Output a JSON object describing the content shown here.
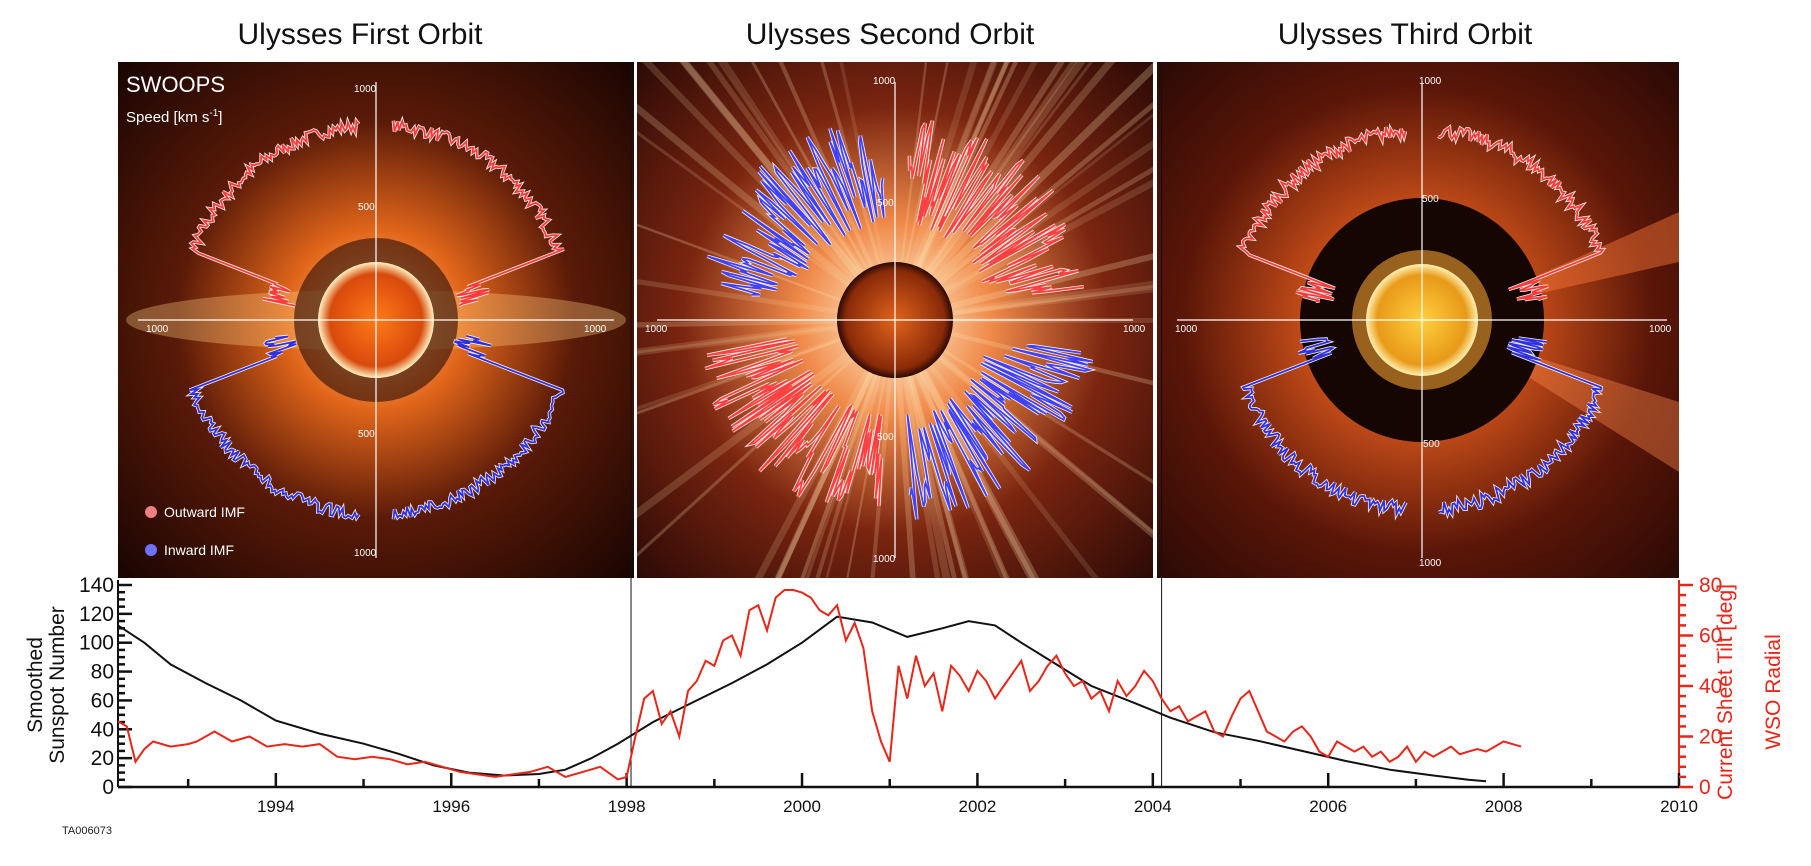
{
  "figure": {
    "code": "TA006073"
  },
  "panels": [
    {
      "title": "Ulysses First Orbit",
      "instrument": "SWOOPS",
      "quantity": "Speed [km s",
      "quantity_sup": "-1",
      "quantity_end": "]",
      "legend": [
        {
          "label": "Outward IMF",
          "color": "#f08080"
        },
        {
          "label": "Inward IMF",
          "color": "#7070ff"
        }
      ],
      "ticks": {
        "top_inner": "500",
        "top_outer": "1000",
        "bottom_inner": "500",
        "bottom_outer": "1000",
        "left": "1000",
        "right": "1000"
      },
      "solar_activity": "minimum"
    },
    {
      "title": "Ulysses Second Orbit",
      "ticks": {
        "top_inner": "500",
        "top_outer": "1000",
        "bottom_inner": "500",
        "bottom_outer": "1000",
        "left": "1000",
        "right": "1000"
      },
      "solar_activity": "maximum"
    },
    {
      "title": "Ulysses Third Orbit",
      "ticks": {
        "top_inner": "500",
        "top_outer": "1000",
        "bottom_inner": "500",
        "bottom_outer": "1000",
        "left": "1000",
        "right": "1000"
      },
      "solar_activity": "minimum"
    }
  ],
  "chart_data": {
    "type": "line",
    "ylabel_left": [
      "Smoothed",
      "Sunspot Number"
    ],
    "ylabel_right": [
      "Current Sheet Tilt [deg]",
      "WSO Radial"
    ],
    "xlim": [
      1992.2,
      2010
    ],
    "ylim_left": [
      0,
      140
    ],
    "ylim_right": [
      0,
      80
    ],
    "x_ticks": [
      1994,
      1996,
      1998,
      2000,
      2002,
      2004,
      2006,
      2008,
      2010
    ],
    "y_ticks_left": [
      0,
      20,
      40,
      60,
      80,
      100,
      120,
      140
    ],
    "y_ticks_right": [
      0,
      20,
      40,
      60,
      80
    ],
    "orbit_boundaries": [
      1998.05,
      2004.1
    ],
    "series": [
      {
        "axis": "left",
        "color": "#111111",
        "x": [
          1992.2,
          1992.5,
          1992.8,
          1993.2,
          1993.6,
          1994.0,
          1994.5,
          1995.0,
          1995.4,
          1995.8,
          1996.2,
          1996.6,
          1997.0,
          1997.3,
          1997.6,
          1997.9,
          1998.3,
          1998.8,
          1999.2,
          1999.6,
          2000.0,
          2000.4,
          2000.8,
          2001.2,
          2001.6,
          2001.9,
          2002.2,
          2002.5,
          2002.9,
          2003.3,
          2003.8,
          2004.2,
          2004.7,
          2005.2,
          2005.7,
          2006.2,
          2006.7,
          2007.2,
          2007.6,
          2007.8
        ],
        "y": [
          112,
          100,
          85,
          72,
          60,
          46,
          37,
          30,
          23,
          15,
          10,
          8,
          9,
          12,
          20,
          30,
          45,
          60,
          72,
          85,
          100,
          118,
          114,
          104,
          110,
          115,
          112,
          100,
          85,
          70,
          58,
          48,
          38,
          32,
          25,
          18,
          12,
          8,
          5,
          4
        ]
      },
      {
        "axis": "right",
        "color": "#e8261a",
        "x": [
          1992.2,
          1992.3,
          1992.4,
          1992.5,
          1992.6,
          1992.8,
          1993.0,
          1993.1,
          1993.3,
          1993.5,
          1993.7,
          1993.9,
          1994.1,
          1994.3,
          1994.5,
          1994.7,
          1994.9,
          1995.1,
          1995.3,
          1995.5,
          1995.7,
          1995.9,
          1996.1,
          1996.3,
          1996.5,
          1996.7,
          1996.9,
          1997.1,
          1997.3,
          1997.5,
          1997.7,
          1997.9,
          1998.0,
          1998.1,
          1998.2,
          1998.3,
          1998.4,
          1998.5,
          1998.6,
          1998.7,
          1998.8,
          1998.9,
          1999.0,
          1999.1,
          1999.2,
          1999.3,
          1999.4,
          1999.5,
          1999.6,
          1999.7,
          1999.8,
          1999.9,
          2000.0,
          2000.1,
          2000.2,
          2000.3,
          2000.4,
          2000.5,
          2000.6,
          2000.7,
          2000.8,
          2000.9,
          2001.0,
          2001.1,
          2001.2,
          2001.3,
          2001.4,
          2001.5,
          2001.6,
          2001.7,
          2001.8,
          2001.9,
          2002.0,
          2002.1,
          2002.2,
          2002.3,
          2002.4,
          2002.5,
          2002.6,
          2002.7,
          2002.8,
          2002.9,
          2003.0,
          2003.1,
          2003.2,
          2003.3,
          2003.4,
          2003.5,
          2003.6,
          2003.7,
          2003.8,
          2003.9,
          2004.0,
          2004.1,
          2004.2,
          2004.3,
          2004.4,
          2004.5,
          2004.6,
          2004.7,
          2004.8,
          2004.9,
          2005.0,
          2005.1,
          2005.2,
          2005.3,
          2005.4,
          2005.5,
          2005.6,
          2005.7,
          2005.8,
          2005.9,
          2006.0,
          2006.1,
          2006.2,
          2006.3,
          2006.4,
          2006.5,
          2006.6,
          2006.7,
          2006.8,
          2006.9,
          2007.0,
          2007.1,
          2007.2,
          2007.3,
          2007.4,
          2007.5,
          2007.6,
          2007.7,
          2007.8,
          2007.9,
          2008.0,
          2008.1,
          2008.2
        ],
        "y": [
          26,
          24,
          10,
          15,
          18,
          16,
          17,
          18,
          22,
          18,
          20,
          16,
          17,
          16,
          17,
          12,
          11,
          12,
          11,
          9,
          10,
          8,
          6,
          5,
          4,
          5,
          6,
          8,
          4,
          6,
          8,
          3,
          4,
          20,
          35,
          38,
          25,
          30,
          20,
          38,
          42,
          50,
          48,
          58,
          60,
          52,
          70,
          72,
          62,
          75,
          78,
          78,
          77,
          75,
          70,
          68,
          72,
          58,
          65,
          55,
          30,
          18,
          10,
          48,
          35,
          52,
          40,
          45,
          30,
          48,
          44,
          38,
          46,
          42,
          35,
          40,
          45,
          50,
          38,
          42,
          48,
          52,
          45,
          40,
          42,
          35,
          38,
          30,
          42,
          36,
          40,
          46,
          42,
          35,
          30,
          32,
          26,
          28,
          30,
          22,
          20,
          28,
          35,
          38,
          30,
          22,
          20,
          18,
          22,
          24,
          20,
          14,
          12,
          18,
          16,
          14,
          16,
          12,
          14,
          10,
          12,
          16,
          10,
          14,
          12,
          14,
          16,
          13,
          14,
          15,
          14,
          16,
          18,
          17,
          16
        ]
      }
    ]
  }
}
